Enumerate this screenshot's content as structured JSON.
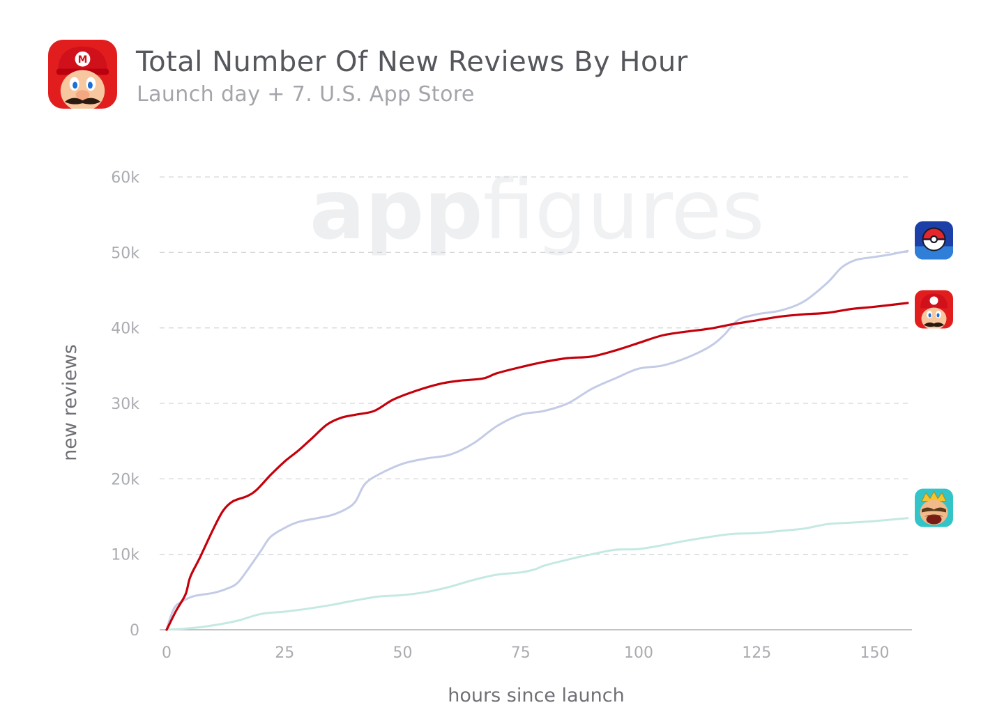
{
  "header": {
    "title": "Total Number Of New Reviews By Hour",
    "subtitle": "Launch day + 7. U.S. App Store",
    "icon": "super-mario-run-app-icon"
  },
  "watermark": {
    "brand_a": "app",
    "brand_b": "figures"
  },
  "colors": {
    "pokemon_go": "#c3cbe6",
    "super_mario_run": "#c4000b",
    "clash_royale": "#c4e9e2",
    "grid": "#d4d5d8",
    "axis": "#aeb0b4"
  },
  "chart_data": {
    "type": "line",
    "xlabel": "hours since launch",
    "ylabel": "new reviews",
    "xlim": [
      0,
      158
    ],
    "ylim": [
      0,
      60000
    ],
    "x_ticks": [
      0,
      25,
      50,
      75,
      100,
      125,
      150
    ],
    "y_ticks": [
      0,
      10000,
      20000,
      30000,
      40000,
      50000,
      60000
    ],
    "y_tick_labels": [
      "0",
      "10k",
      "20k",
      "30k",
      "40k",
      "50k",
      "60k"
    ],
    "grid": true,
    "legend": "icons at end of each line (right)",
    "series": [
      {
        "key": "pokemon_go",
        "icon": "pokemon-go-app-icon",
        "color": "#c3cbe6",
        "points": [
          [
            0,
            0
          ],
          [
            1,
            2000
          ],
          [
            2,
            3200
          ],
          [
            4,
            4000
          ],
          [
            6,
            4500
          ],
          [
            10,
            4900
          ],
          [
            13,
            5500
          ],
          [
            15,
            6200
          ],
          [
            17,
            7800
          ],
          [
            20,
            10500
          ],
          [
            22,
            12300
          ],
          [
            25,
            13500
          ],
          [
            28,
            14300
          ],
          [
            32,
            14800
          ],
          [
            35,
            15200
          ],
          [
            38,
            16000
          ],
          [
            40,
            17000
          ],
          [
            42,
            19300
          ],
          [
            45,
            20600
          ],
          [
            50,
            22000
          ],
          [
            55,
            22700
          ],
          [
            60,
            23200
          ],
          [
            65,
            24700
          ],
          [
            70,
            27000
          ],
          [
            75,
            28500
          ],
          [
            80,
            29000
          ],
          [
            85,
            30000
          ],
          [
            90,
            31900
          ],
          [
            95,
            33300
          ],
          [
            100,
            34600
          ],
          [
            105,
            35000
          ],
          [
            110,
            36000
          ],
          [
            115,
            37500
          ],
          [
            118,
            39000
          ],
          [
            121,
            41000
          ],
          [
            125,
            41800
          ],
          [
            130,
            42300
          ],
          [
            135,
            43500
          ],
          [
            140,
            46000
          ],
          [
            143,
            48000
          ],
          [
            146,
            49000
          ],
          [
            150,
            49400
          ],
          [
            153,
            49700
          ],
          [
            157,
            50200
          ]
        ]
      },
      {
        "key": "super_mario_run",
        "icon": "super-mario-run-app-icon",
        "color": "#c4000b",
        "points": [
          [
            0,
            0
          ],
          [
            2,
            2500
          ],
          [
            4,
            4700
          ],
          [
            5,
            7000
          ],
          [
            7,
            9500
          ],
          [
            10,
            13500
          ],
          [
            12,
            15800
          ],
          [
            14,
            17000
          ],
          [
            17,
            17700
          ],
          [
            19,
            18500
          ],
          [
            22,
            20500
          ],
          [
            25,
            22300
          ],
          [
            28,
            23800
          ],
          [
            31,
            25500
          ],
          [
            34,
            27200
          ],
          [
            37,
            28100
          ],
          [
            40,
            28500
          ],
          [
            44,
            29000
          ],
          [
            48,
            30500
          ],
          [
            53,
            31700
          ],
          [
            58,
            32600
          ],
          [
            62,
            33000
          ],
          [
            67,
            33300
          ],
          [
            70,
            34000
          ],
          [
            75,
            34800
          ],
          [
            80,
            35500
          ],
          [
            85,
            36000
          ],
          [
            90,
            36200
          ],
          [
            95,
            37000
          ],
          [
            100,
            38000
          ],
          [
            105,
            39000
          ],
          [
            110,
            39500
          ],
          [
            115,
            39900
          ],
          [
            120,
            40500
          ],
          [
            125,
            41000
          ],
          [
            130,
            41500
          ],
          [
            135,
            41800
          ],
          [
            140,
            42000
          ],
          [
            145,
            42500
          ],
          [
            150,
            42800
          ],
          [
            157,
            43300
          ]
        ]
      },
      {
        "key": "clash_royale",
        "icon": "clash-royale-app-icon",
        "color": "#c4e9e2",
        "points": [
          [
            0,
            0
          ],
          [
            5,
            200
          ],
          [
            10,
            600
          ],
          [
            15,
            1200
          ],
          [
            20,
            2100
          ],
          [
            25,
            2400
          ],
          [
            30,
            2800
          ],
          [
            35,
            3300
          ],
          [
            40,
            3900
          ],
          [
            45,
            4400
          ],
          [
            50,
            4600
          ],
          [
            55,
            5000
          ],
          [
            60,
            5700
          ],
          [
            65,
            6600
          ],
          [
            70,
            7300
          ],
          [
            75,
            7600
          ],
          [
            78,
            8000
          ],
          [
            80,
            8500
          ],
          [
            85,
            9300
          ],
          [
            90,
            10000
          ],
          [
            95,
            10600
          ],
          [
            100,
            10700
          ],
          [
            105,
            11200
          ],
          [
            110,
            11800
          ],
          [
            115,
            12300
          ],
          [
            120,
            12700
          ],
          [
            125,
            12800
          ],
          [
            130,
            13100
          ],
          [
            135,
            13400
          ],
          [
            140,
            14000
          ],
          [
            145,
            14200
          ],
          [
            150,
            14400
          ],
          [
            157,
            14800
          ]
        ]
      }
    ]
  }
}
